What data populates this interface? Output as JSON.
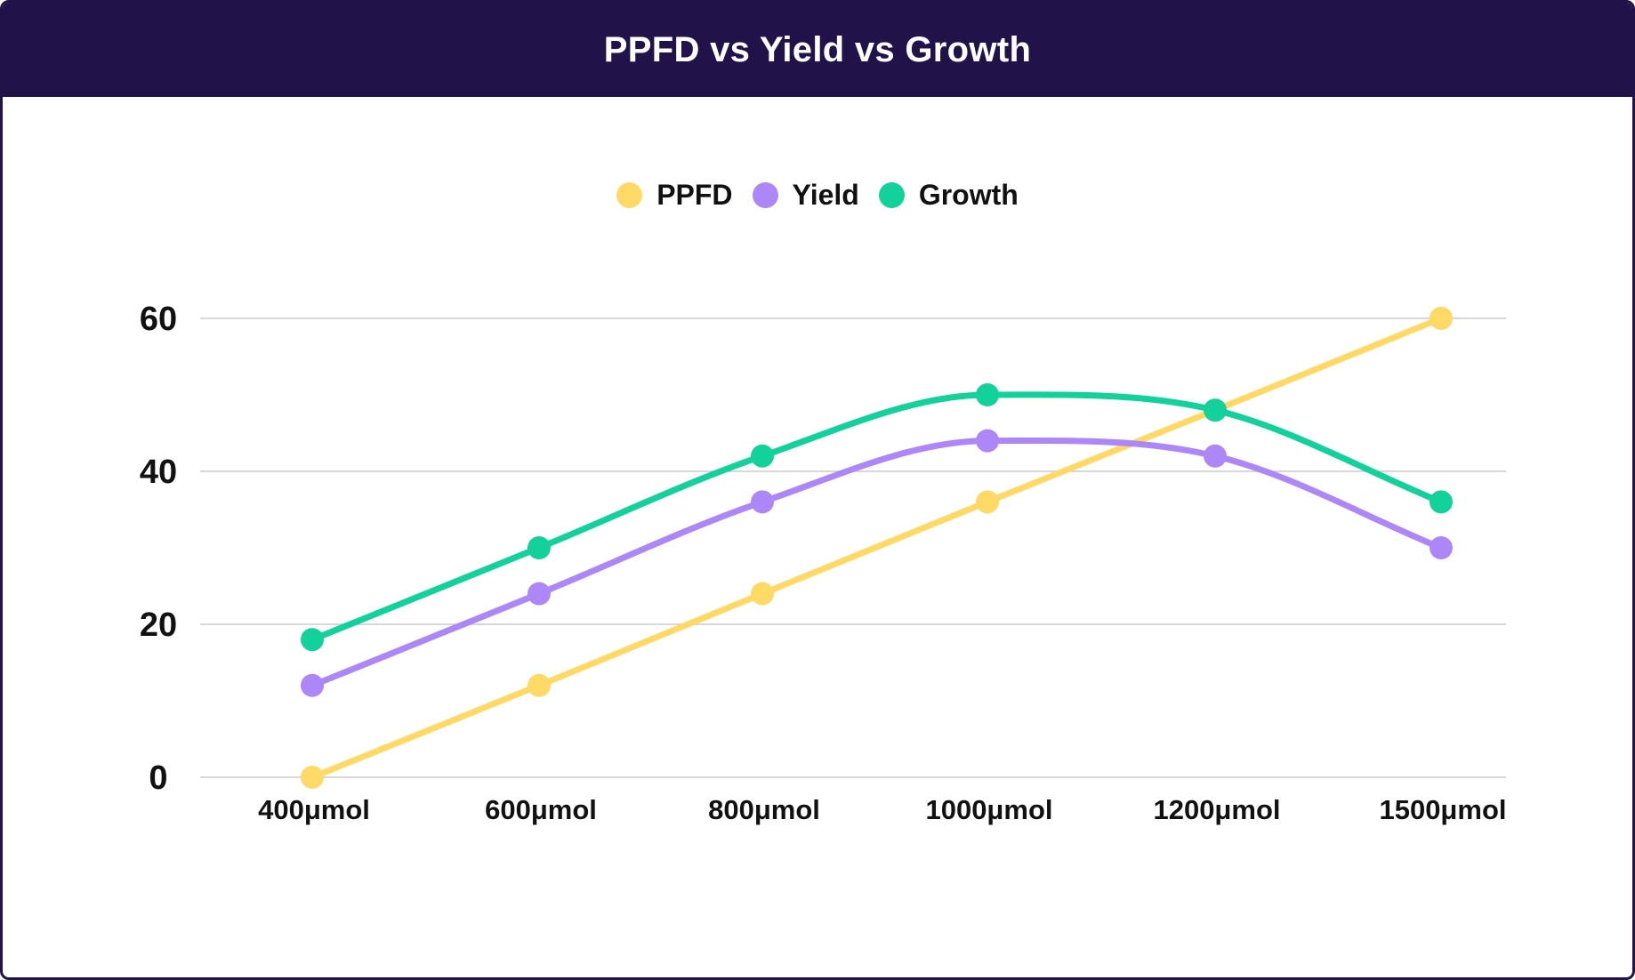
{
  "chart_data": {
    "type": "line",
    "title": "PPFD vs Yield vs Growth",
    "categories": [
      "400μmol",
      "600μmol",
      "800μmol",
      "1000μmol",
      "1200μmol",
      "1500μmol"
    ],
    "yticks": [
      0,
      20,
      40,
      60
    ],
    "ylim": [
      0,
      60
    ],
    "grid": true,
    "legend_position": "top-center",
    "xlabel": "",
    "ylabel": "",
    "series": [
      {
        "name": "PPFD",
        "color": "#FFD966",
        "values": [
          0,
          12,
          24,
          36,
          48,
          60
        ]
      },
      {
        "name": "Yield",
        "color": "#AD87F7",
        "values": [
          12,
          24,
          36,
          44,
          42,
          30
        ]
      },
      {
        "name": "Growth",
        "color": "#12D19B",
        "values": [
          18,
          30,
          42,
          50,
          48,
          36
        ]
      }
    ]
  }
}
